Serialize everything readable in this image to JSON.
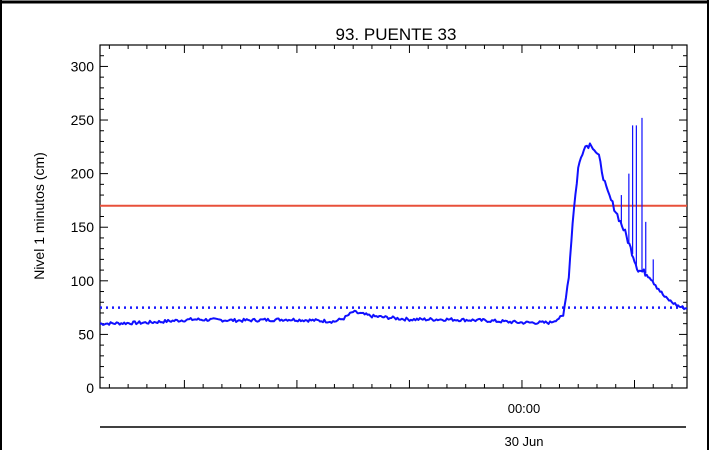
{
  "chart_data": {
    "type": "line",
    "title": "93. PUENTE 33",
    "xlabel": "",
    "ylabel": "Nivel 1 minutos (cm)",
    "ylim": [
      0,
      320
    ],
    "yticks": [
      0,
      50,
      100,
      150,
      200,
      250,
      300
    ],
    "x_unit": "hours relative to 00:00 30 Jun",
    "xlim": [
      -22.5,
      8.8
    ],
    "x_tick_label": "00:00",
    "x_date_label": "30 Jun",
    "thresholds": [
      {
        "value": 170,
        "style": "solid",
        "color": "#e8503a"
      },
      {
        "value": 75,
        "style": "dotted",
        "color": "#1a1aff"
      }
    ],
    "series_color": "#1010ff",
    "series": [
      {
        "x": [
          -22.5,
          -20,
          -17.5,
          -15,
          -12.5,
          -11,
          -10,
          -9.5,
          -9,
          -8,
          -6,
          -4,
          -2,
          0,
          1.5,
          2.2,
          2.5,
          2.7,
          3,
          3.3,
          3.7,
          4.1,
          4.5,
          5,
          5.5,
          5.8,
          6,
          6.2,
          6.5,
          6.8,
          7.2,
          7.6,
          8,
          8.4,
          8.8
        ],
        "y": [
          60,
          61,
          64,
          63,
          64,
          63,
          62,
          65,
          71,
          67,
          64,
          64,
          63,
          61,
          61,
          67,
          105,
          155,
          205,
          225,
          228,
          215,
          185,
          165,
          145,
          130,
          120,
          110,
          108,
          105,
          95,
          85,
          80,
          76,
          74
        ]
      }
    ],
    "spikes": [
      {
        "x": 5.3,
        "y": 180
      },
      {
        "x": 5.7,
        "y": 200
      },
      {
        "x": 5.9,
        "y": 245
      },
      {
        "x": 6.1,
        "y": 245
      },
      {
        "x": 6.4,
        "y": 252
      },
      {
        "x": 6.6,
        "y": 155
      },
      {
        "x": 7.0,
        "y": 120
      }
    ]
  }
}
